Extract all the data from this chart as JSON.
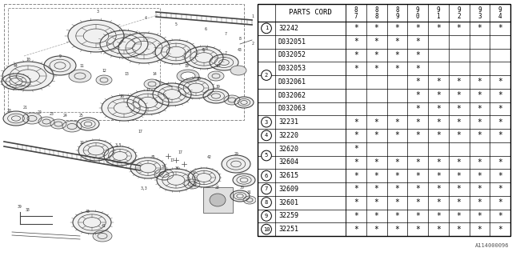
{
  "catalog_code": "A114000096",
  "rows": [
    {
      "num": "1",
      "code": "32242",
      "marks": [
        1,
        1,
        1,
        1,
        1,
        1,
        1,
        1
      ]
    },
    {
      "num": "",
      "code": "D032051",
      "marks": [
        1,
        1,
        1,
        1,
        0,
        0,
        0,
        0
      ]
    },
    {
      "num": "",
      "code": "D032052",
      "marks": [
        1,
        1,
        1,
        1,
        0,
        0,
        0,
        0
      ]
    },
    {
      "num": "2",
      "code": "D032053",
      "marks": [
        1,
        1,
        1,
        1,
        0,
        0,
        0,
        0
      ]
    },
    {
      "num": "",
      "code": "D032061",
      "marks": [
        0,
        0,
        0,
        1,
        1,
        1,
        1,
        1
      ]
    },
    {
      "num": "",
      "code": "D032062",
      "marks": [
        0,
        0,
        0,
        1,
        1,
        1,
        1,
        1
      ]
    },
    {
      "num": "",
      "code": "D032063",
      "marks": [
        0,
        0,
        0,
        1,
        1,
        1,
        1,
        1
      ]
    },
    {
      "num": "3",
      "code": "32231",
      "marks": [
        1,
        1,
        1,
        1,
        1,
        1,
        1,
        1
      ]
    },
    {
      "num": "4",
      "code": "32220",
      "marks": [
        1,
        1,
        1,
        1,
        1,
        1,
        1,
        1
      ]
    },
    {
      "num": "",
      "code": "32620",
      "marks": [
        1,
        0,
        0,
        0,
        0,
        0,
        0,
        0
      ]
    },
    {
      "num": "5",
      "code": "32604",
      "marks": [
        1,
        1,
        1,
        1,
        1,
        1,
        1,
        1
      ]
    },
    {
      "num": "6",
      "code": "32615",
      "marks": [
        1,
        1,
        1,
        1,
        1,
        1,
        1,
        1
      ]
    },
    {
      "num": "7",
      "code": "32609",
      "marks": [
        1,
        1,
        1,
        1,
        1,
        1,
        1,
        1
      ]
    },
    {
      "num": "8",
      "code": "32601",
      "marks": [
        1,
        1,
        1,
        1,
        1,
        1,
        1,
        1
      ]
    },
    {
      "num": "9",
      "code": "32259",
      "marks": [
        1,
        1,
        1,
        1,
        1,
        1,
        1,
        1
      ]
    },
    {
      "num": "10",
      "code": "32251",
      "marks": [
        1,
        1,
        1,
        1,
        1,
        1,
        1,
        1
      ]
    }
  ],
  "num_groups": [
    {
      "label": "1",
      "start": 0,
      "end": 0
    },
    {
      "label": "2",
      "start": 1,
      "end": 6
    },
    {
      "label": "3",
      "start": 7,
      "end": 7
    },
    {
      "label": "4",
      "start": 8,
      "end": 8
    },
    {
      "label": "5",
      "start": 9,
      "end": 10
    },
    {
      "label": "6",
      "start": 11,
      "end": 11
    },
    {
      "label": "7",
      "start": 12,
      "end": 12
    },
    {
      "label": "8",
      "start": 13,
      "end": 13
    },
    {
      "label": "9",
      "start": 14,
      "end": 14
    },
    {
      "label": "10",
      "start": 15,
      "end": 15
    }
  ],
  "col_headers": [
    "8\n7",
    "8\n8",
    "8\n9",
    "9\n0",
    "9\n1",
    "9\n2",
    "9\n3",
    "9\n4"
  ],
  "bg_color": "#ffffff"
}
